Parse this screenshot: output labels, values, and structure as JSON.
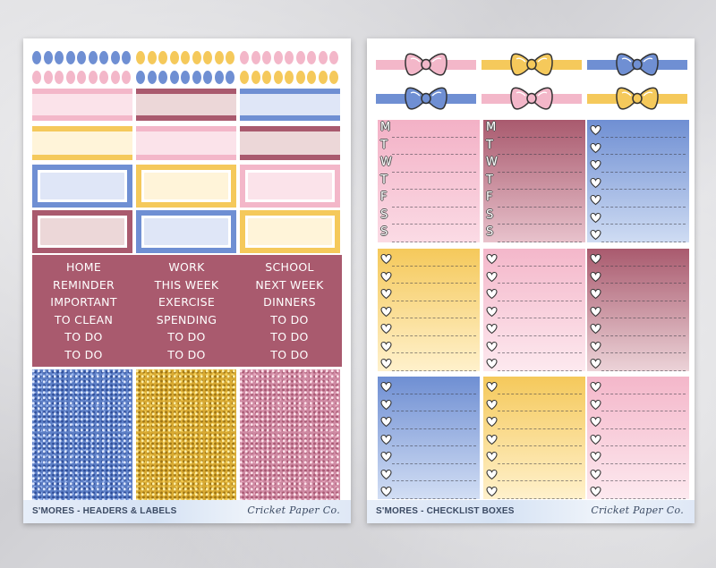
{
  "sheets": {
    "left": {
      "title": "S'MORES - HEADERS & LABELS",
      "brand": "Cricket Paper Co.",
      "word_columns": [
        [
          "HOME",
          "REMINDER",
          "IMPORTANT",
          "TO CLEAN",
          "TO DO",
          "TO DO"
        ],
        [
          "WORK",
          "THIS WEEK",
          "EXERCISE",
          "SPENDING",
          "TO DO",
          "TO DO"
        ],
        [
          "SCHOOL",
          "NEXT WEEK",
          "DINNERS",
          "TO DO",
          "TO DO",
          "TO DO"
        ]
      ]
    },
    "right": {
      "title": "S'MORES - CHECKLIST BOXES",
      "brand": "Cricket Paper Co.",
      "weekdays": [
        "M",
        "T",
        "W",
        "T",
        "F",
        "S",
        "S"
      ]
    }
  },
  "colors": {
    "blue": "#6f8fd3",
    "yellow": "#f5c95b",
    "pink": "#f3b7c9",
    "mauve": "#a95a6e",
    "light_blue": "#dfe6f7",
    "cream": "#fff4d9",
    "light_pink": "#fbe3ea",
    "dusty": "#ecd7d8"
  },
  "icons": [
    "bow-icon",
    "heart-check-icon"
  ]
}
